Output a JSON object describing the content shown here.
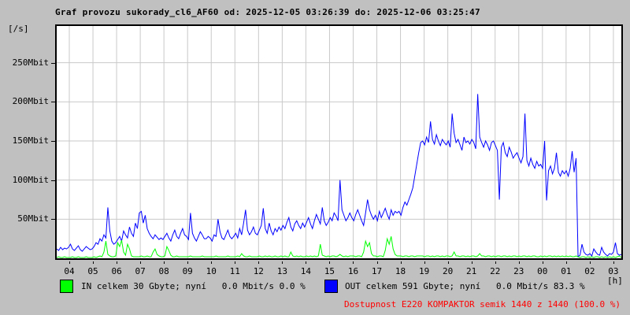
{
  "title": "Graf provozu sukorady_cl6_AF60 od: 2025-12-05 03:26:39 do: 2025-12-06 03:25:47",
  "colors": {
    "background": "#c0c0c0",
    "plot_background": "#ffffff",
    "grid": "#c9c9c9",
    "border": "#000000",
    "in_series": "#00ff00",
    "out_series": "#0000ff",
    "availability_text": "#ff0000",
    "text": "#000000"
  },
  "y_axis": {
    "unit_label": "[/s]",
    "ticks": [
      {
        "value": 50,
        "label": "50Mbit"
      },
      {
        "value": 100,
        "label": "100Mbit"
      },
      {
        "value": 150,
        "label": "150Mbit"
      },
      {
        "value": 200,
        "label": "200Mbit"
      },
      {
        "value": 250,
        "label": "250Mbit"
      }
    ]
  },
  "x_axis": {
    "labels": [
      "04",
      "05",
      "06",
      "07",
      "08",
      "09",
      "10",
      "11",
      "12",
      "13",
      "14",
      "15",
      "16",
      "17",
      "18",
      "19",
      "20",
      "21",
      "22",
      "23",
      "00",
      "01",
      "02",
      "03"
    ],
    "unit_label": "[h]"
  },
  "legend": {
    "in": {
      "swatch_color": "#00ff00",
      "text": "IN celkem 30 Gbyte; nyní   0.0 Mbit/s 0.0 %"
    },
    "out": {
      "swatch_color": "#0000ff",
      "text": "OUT celkem 591 Gbyte; nyní   0.0 Mbit/s 83.3 %"
    }
  },
  "availability": {
    "text": "Dostupnost E220 KOMPAKTOR semik 1440 z 1440 (100.0 %)"
  },
  "chart_data": {
    "type": "line",
    "title": "Graf provozu sukorady_cl6_AF60",
    "time_from": "2025-12-05 03:26:39",
    "time_to": "2025-12-06 03:25:47",
    "x_start_hour": 3.5,
    "x_step_minutes": 5,
    "xlabel": "[h]",
    "ylabel": "[/s]",
    "ylim": [
      0,
      297
    ],
    "grid": true,
    "legend_position": "bottom",
    "series": [
      {
        "name": "OUT Mbit/s",
        "color": "#0000ff",
        "values": [
          12,
          10,
          14,
          11,
          13,
          12,
          14,
          18,
          12,
          10,
          13,
          16,
          11,
          9,
          12,
          15,
          13,
          11,
          12,
          15,
          20,
          18,
          25,
          22,
          30,
          26,
          65,
          35,
          22,
          18,
          20,
          24,
          28,
          22,
          35,
          30,
          26,
          40,
          32,
          28,
          45,
          38,
          58,
          60,
          45,
          55,
          38,
          32,
          28,
          25,
          30,
          27,
          24,
          26,
          24,
          28,
          32,
          26,
          22,
          30,
          36,
          28,
          25,
          32,
          38,
          30,
          28,
          24,
          58,
          32,
          26,
          22,
          28,
          34,
          30,
          25,
          25,
          28,
          26,
          22,
          30,
          28,
          50,
          34,
          26,
          24,
          30,
          36,
          28,
          25,
          28,
          32,
          26,
          38,
          30,
          45,
          62,
          36,
          30,
          34,
          40,
          32,
          30,
          36,
          42,
          64,
          38,
          32,
          45,
          35,
          30,
          38,
          34,
          40,
          36,
          42,
          38,
          46,
          52,
          40,
          35,
          44,
          48,
          42,
          38,
          45,
          40,
          46,
          52,
          44,
          38,
          48,
          56,
          50,
          44,
          65,
          48,
          42,
          46,
          52,
          48,
          58,
          54,
          48,
          100,
          62,
          55,
          48,
          52,
          58,
          52,
          48,
          56,
          62,
          55,
          48,
          42,
          58,
          75,
          62,
          55,
          50,
          55,
          48,
          60,
          52,
          58,
          64,
          56,
          50,
          62,
          55,
          60,
          58,
          60,
          55,
          65,
          72,
          68,
          75,
          82,
          90,
          105,
          120,
          135,
          148,
          150,
          145,
          155,
          148,
          175,
          152,
          146,
          158,
          150,
          144,
          152,
          148,
          145,
          150,
          142,
          185,
          160,
          148,
          152,
          145,
          138,
          155,
          148,
          150,
          146,
          152,
          148,
          140,
          210,
          155,
          148,
          142,
          150,
          145,
          138,
          148,
          150,
          144,
          138,
          75,
          142,
          148,
          135,
          130,
          142,
          136,
          128,
          132,
          135,
          128,
          122,
          130,
          185,
          125,
          118,
          128,
          120,
          115,
          124,
          118,
          120,
          115,
          150,
          74,
          112,
          118,
          108,
          115,
          135,
          110,
          105,
          112,
          108,
          112,
          105,
          115,
          137,
          110,
          128,
          2,
          4,
          18,
          8,
          5,
          4,
          6,
          3,
          12,
          8,
          5,
          4,
          14,
          8,
          5,
          3,
          6,
          5,
          8,
          20,
          6,
          4,
          5
        ]
      },
      {
        "name": "IN Mbit/s",
        "color": "#00ff00",
        "values": [
          1,
          2,
          1,
          1,
          2,
          1,
          1,
          1,
          2,
          1,
          1,
          2,
          1,
          1,
          1,
          2,
          1,
          1,
          1,
          2,
          1,
          2,
          3,
          2,
          8,
          22,
          5,
          3,
          2,
          2,
          3,
          20,
          15,
          23,
          8,
          4,
          18,
          12,
          3,
          2,
          2,
          2,
          2,
          3,
          2,
          2,
          3,
          2,
          2,
          8,
          12,
          5,
          3,
          2,
          2,
          3,
          15,
          10,
          4,
          2,
          2,
          3,
          2,
          2,
          2,
          2,
          2,
          2,
          3,
          2,
          2,
          2,
          2,
          2,
          3,
          2,
          2,
          2,
          2,
          2,
          2,
          3,
          2,
          2,
          2,
          2,
          2,
          3,
          2,
          2,
          2,
          2,
          3,
          2,
          6,
          3,
          2,
          2,
          3,
          2,
          2,
          2,
          2,
          3,
          2,
          2,
          3,
          2,
          3,
          2,
          2,
          3,
          2,
          2,
          3,
          2,
          3,
          2,
          2,
          8,
          3,
          2,
          3,
          2,
          3,
          2,
          2,
          3,
          2,
          3,
          2,
          3,
          2,
          3,
          18,
          4,
          3,
          2,
          3,
          2,
          3,
          3,
          2,
          3,
          5,
          3,
          2,
          3,
          2,
          3,
          3,
          3,
          2,
          3,
          3,
          2,
          8,
          22,
          15,
          20,
          6,
          3,
          3,
          2,
          3,
          3,
          2,
          10,
          25,
          18,
          28,
          12,
          5,
          3,
          3,
          3,
          2,
          3,
          3,
          2,
          3,
          3,
          2,
          3,
          3,
          3,
          3,
          2,
          3,
          3,
          2,
          3,
          2,
          3,
          3,
          2,
          3,
          2,
          3,
          3,
          2,
          3,
          8,
          3,
          3,
          2,
          3,
          3,
          2,
          3,
          2,
          3,
          3,
          2,
          3,
          6,
          3,
          3,
          2,
          3,
          3,
          2,
          3,
          2,
          3,
          3,
          2,
          3,
          3,
          2,
          3,
          2,
          3,
          3,
          2,
          3,
          2,
          3,
          3,
          2,
          3,
          2,
          3,
          3,
          2,
          2,
          3,
          2,
          3,
          2,
          3,
          3,
          2,
          3,
          2,
          3,
          2,
          3,
          2,
          3,
          2,
          3,
          2,
          2,
          3,
          2,
          1,
          2,
          2,
          1,
          2,
          1,
          2,
          1,
          2,
          2,
          1,
          2,
          1,
          2,
          1,
          2,
          1,
          2,
          1,
          2,
          3,
          1
        ]
      }
    ]
  }
}
